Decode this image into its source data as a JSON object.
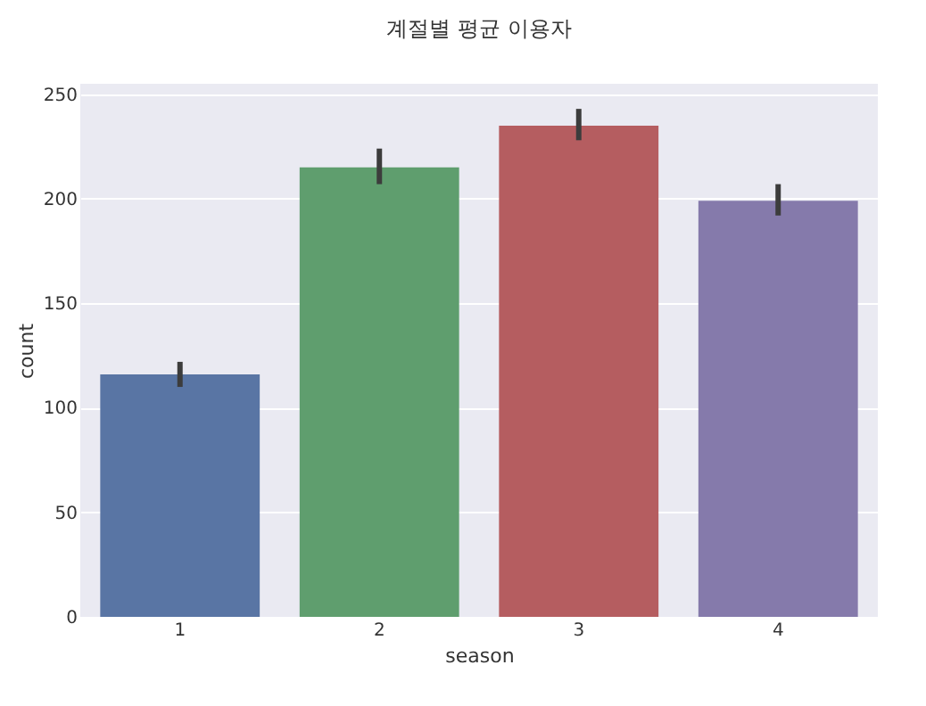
{
  "chart_data": {
    "type": "bar",
    "title": "계절별 평균 이용자",
    "xlabel": "season",
    "ylabel": "count",
    "categories": [
      "1",
      "2",
      "3",
      "4"
    ],
    "values": [
      116,
      215,
      235,
      199
    ],
    "colors": [
      "#5975a4",
      "#5f9e6e",
      "#b55d60",
      "#857aab"
    ],
    "errors": [
      [
        110,
        122
      ],
      [
        207,
        224
      ],
      [
        228,
        243
      ],
      [
        192,
        207
      ]
    ],
    "ylim": [
      0,
      255
    ],
    "yticks": [
      0,
      50,
      100,
      150,
      200,
      250
    ],
    "grid": "y"
  }
}
